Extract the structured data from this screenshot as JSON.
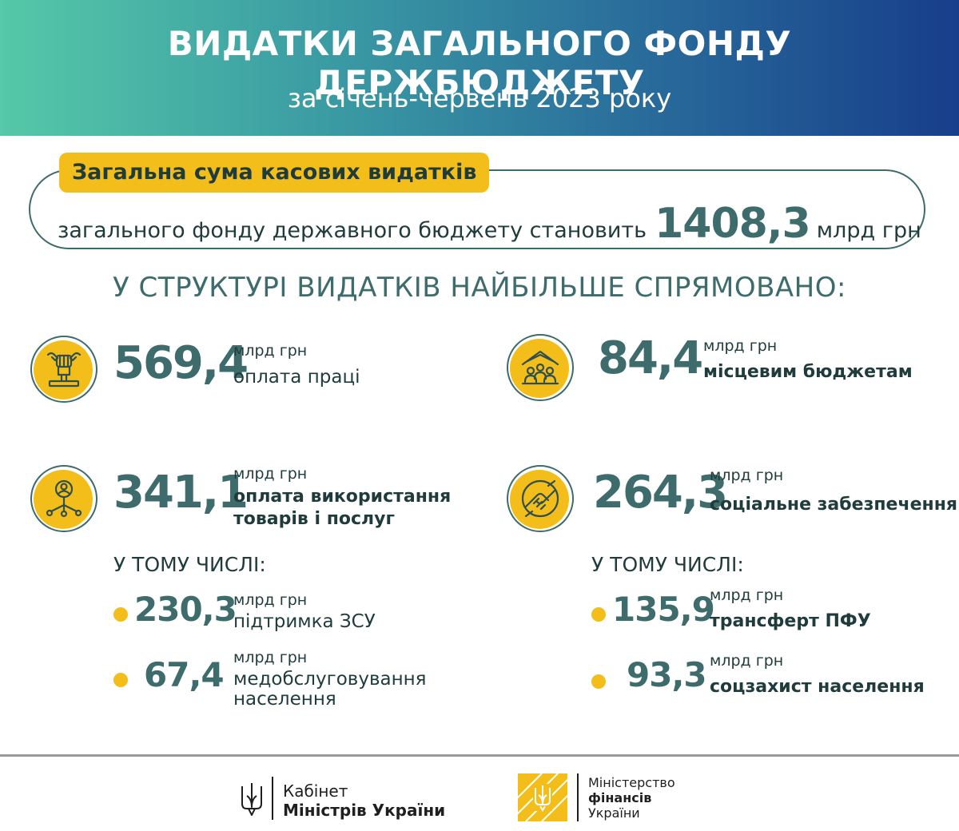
{
  "header": {
    "title": "ВИДАТКИ ЗАГАЛЬНОГО ФОНДУ ДЕРЖБЮДЖЕТУ",
    "subtitle": "за січень-червень 2023 року"
  },
  "total": {
    "tag": "Загальна сума касових видатків",
    "text": "загального фонду державного бюджету становить",
    "value": "1408,3",
    "unit": "млрд грн"
  },
  "section_title": "У СТРУКТУРІ ВИДАТКІВ НАЙБІЛЬШЕ СПРЯМОВАНО:",
  "items": [
    {
      "value": "569,4",
      "unit": "млрд грн",
      "label_1": "оплата праці",
      "icon": "wages-fist-wrench-icon"
    },
    {
      "value": "84,4",
      "unit": "млрд грн",
      "label_1": "місцевим бюджетам",
      "icon": "local-budgets-house-icon"
    },
    {
      "value": "341,1",
      "unit": "млрд грн",
      "label_1": "оплата використання",
      "label_2": "товарів і послуг",
      "icon": "goods-services-network-icon"
    },
    {
      "value": "264,3",
      "unit": "млрд грн",
      "label_1": "соціальне забезпечення",
      "icon": "social-security-handshake-icon"
    }
  ],
  "left_breakdown": {
    "heading": "У ТОМУ ЧИСЛІ:",
    "rows": [
      {
        "value": "230,3",
        "unit": "млрд грн",
        "label_1": "підтримка ЗСУ"
      },
      {
        "value": "67,4",
        "unit": "млрд грн",
        "label_1": "медобслуговування",
        "label_2": "населення"
      }
    ]
  },
  "right_breakdown": {
    "heading": "У ТОМУ ЧИСЛІ:",
    "rows": [
      {
        "value": "135,9",
        "unit": "млрд грн",
        "label_1": "трансферт ПФУ"
      },
      {
        "value": "93,3",
        "unit": "млрд грн",
        "label_1": "соцзахист населення"
      }
    ]
  },
  "footer": {
    "cabinet_line1": "Кабінет",
    "cabinet_line2": "Міністрів України",
    "ministry_line1": "Міністерство",
    "ministry_line2": "фінансів",
    "ministry_line3": "України"
  },
  "colors": {
    "accent_yellow": "#f4be1a",
    "teal_dark": "#3e6b6b",
    "header_gradient_start": "#55c8a8",
    "header_gradient_end": "#173e8a"
  }
}
